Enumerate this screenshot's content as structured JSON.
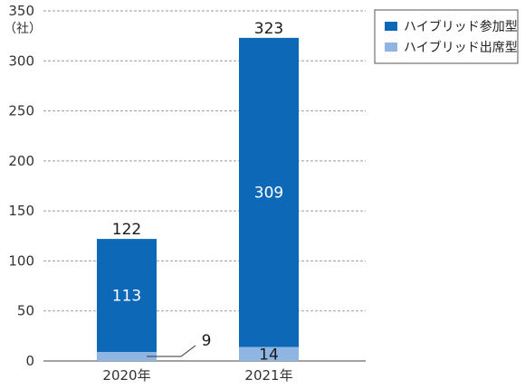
{
  "chart_data": {
    "type": "bar",
    "stacked": true,
    "categories": [
      "2020年",
      "2021年"
    ],
    "series": [
      {
        "name": "ハイブリッド出席型",
        "values": [
          9,
          14
        ],
        "color": "#8fb6e3"
      },
      {
        "name": "ハイブリッド参加型",
        "values": [
          113,
          309
        ],
        "color": "#0e68b8"
      }
    ],
    "totals": [
      122,
      323
    ],
    "ylabel": "（社）",
    "ylim": [
      0,
      350
    ],
    "yticks": [
      0,
      50,
      100,
      150,
      200,
      250,
      300,
      350
    ],
    "grid": true,
    "legend": {
      "placement": "top-right",
      "entries": [
        "ハイブリッド参加型",
        "ハイブリッド出席型"
      ]
    }
  }
}
